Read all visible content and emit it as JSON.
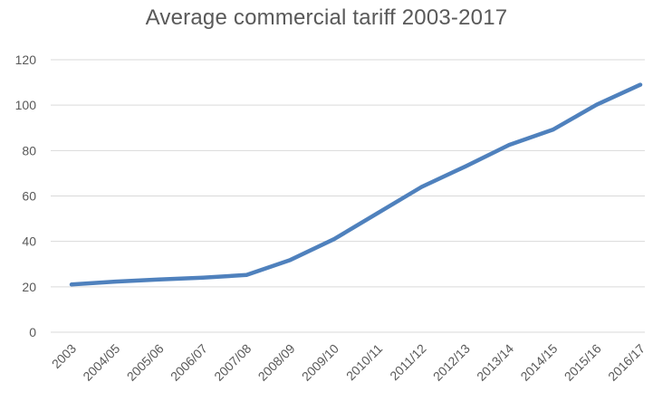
{
  "chart_data": {
    "type": "line",
    "title": "Average commercial tariff 2003-2017",
    "xlabel": "",
    "ylabel": "",
    "categories": [
      "2003",
      "2004/05",
      "2005/06",
      "2006/07",
      "2007/08",
      "2008/09",
      "2009/10",
      "2010/11",
      "2011/12",
      "2012/13",
      "2013/14",
      "2014/15",
      "2015/16",
      "2016/17"
    ],
    "series": [
      {
        "values": [
          21,
          22.3,
          23.2,
          24,
          25.2,
          31.8,
          41,
          52.5,
          64,
          73,
          82.5,
          89.2,
          100.2,
          109
        ]
      }
    ],
    "ylim": [
      0,
      120
    ],
    "yticks": [
      0,
      20,
      40,
      60,
      80,
      100,
      120
    ],
    "grid": true,
    "legend": "none",
    "colors": {
      "line": "#4f81bd",
      "grid": "#d9d9d9",
      "text": "#595959"
    }
  }
}
